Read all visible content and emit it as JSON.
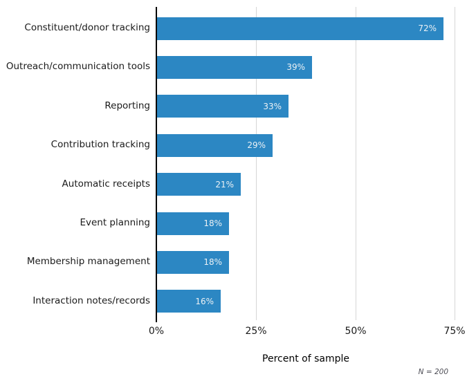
{
  "chart_data": {
    "type": "bar",
    "orientation": "horizontal",
    "categories": [
      "Constituent/donor tracking",
      "Outreach/communication tools",
      "Reporting",
      "Contribution tracking",
      "Automatic receipts",
      "Event planning",
      "Membership management",
      "Interaction notes/records"
    ],
    "values": [
      72,
      39,
      33,
      29,
      21,
      18,
      18,
      16
    ],
    "value_label_suffix": "%",
    "x_ticks": [
      {
        "value": 0,
        "label": "0%"
      },
      {
        "value": 25,
        "label": "25%"
      },
      {
        "value": 50,
        "label": "50%"
      },
      {
        "value": 75,
        "label": "75%"
      }
    ],
    "xlim": [
      0,
      78
    ],
    "xlabel": "Percent of sample",
    "note": "N = 200",
    "grid": true,
    "legend_position": "none",
    "colors": {
      "bar": "#2c87c3",
      "bar_value_text": "#ebf1f5",
      "gridline": "#d6d6d6",
      "axis_spine": "#000000",
      "category_text": "#1a1a1a",
      "note_text": "#4d4d55"
    }
  }
}
